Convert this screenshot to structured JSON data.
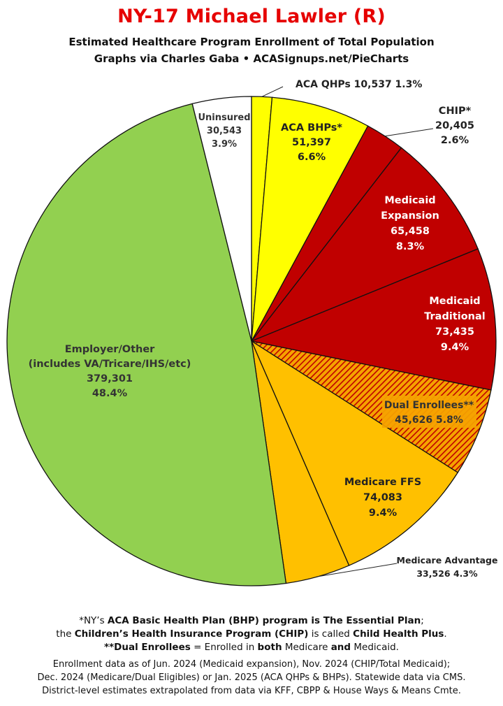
{
  "title": "NY-17 Michael Lawler (R)",
  "subtitle_line1": "Estimated Healthcare Program Enrollment of Total Population",
  "subtitle_line2": "Graphs via Charles Gaba  •  ACASignups.net/PieCharts",
  "chart_data": {
    "type": "pie",
    "title": "NY-17 Michael Lawler (R)",
    "start": "12 o'clock",
    "direction": "clockwise",
    "slices": [
      {
        "label": "ACA QHPs",
        "value": 10537,
        "value_text": "10,537",
        "percent_text": "1.3%",
        "color": "#ffff00",
        "pattern": "none"
      },
      {
        "label": "ACA BHPs*",
        "value": 51397,
        "value_text": "51,397",
        "percent_text": "6.6%",
        "color": "#ffff00",
        "pattern": "none"
      },
      {
        "label": "CHIP*",
        "value": 20405,
        "value_text": "20,405",
        "percent_text": "2.6%",
        "color": "#c00000",
        "pattern": "none"
      },
      {
        "label": "Medicaid Expansion",
        "value": 65458,
        "value_text": "65,458",
        "percent_text": "8.3%",
        "color": "#c00000",
        "pattern": "none"
      },
      {
        "label": "Medicaid Traditional",
        "value": 73435,
        "value_text": "73,435",
        "percent_text": "9.4%",
        "color": "#c00000",
        "pattern": "none"
      },
      {
        "label": "Dual Enrollees**",
        "value": 45626,
        "value_text": "45,626",
        "percent_text": "5.8%",
        "color": "#f5a300",
        "pattern": "hatch"
      },
      {
        "label": "Medicare FFS",
        "value": 74083,
        "value_text": "74,083",
        "percent_text": "9.4%",
        "color": "#ffc000",
        "pattern": "none"
      },
      {
        "label": "Medicare Advantage",
        "value": 33526,
        "value_text": "33,526",
        "percent_text": "4.3%",
        "color": "#ffc000",
        "pattern": "none"
      },
      {
        "label": "Employer/Other",
        "sublabel": "(includes VA/Tricare/IHS/etc)",
        "value": 379301,
        "value_text": "379,301",
        "percent_text": "48.4%",
        "color": "#92d050",
        "pattern": "none"
      },
      {
        "label": "Uninsured",
        "value": 30543,
        "value_text": "30,543",
        "percent_text": "3.9%",
        "color": "#ffffff",
        "pattern": "none"
      }
    ]
  },
  "footnotes": {
    "line1_pre": "*NY’s ",
    "line1_bold": "ACA Basic Health Plan (BHP) program is The Essential Plan",
    "line1_post": ";",
    "line2_pre": "the ",
    "line2_bold1": "Children’s Health Insurance Program (CHIP)",
    "line2_mid": " is called ",
    "line2_bold2": "Child Health Plus",
    "line2_post": ".",
    "line3_bold": "**Dual Enrollees",
    "line3_mid1": " = Enrolled in ",
    "line3_bold2": "both",
    "line3_mid2": " Medicare ",
    "line3_bold3": "and",
    "line3_post": " Medicaid."
  },
  "sources": {
    "line1": "Enrollment data as of Jun. 2024 (Medicaid expansion), Nov. 2024 (CHIP/Total Medicaid);",
    "line2": "Dec. 2024 (Medicare/Dual Eligibles) or Jan. 2025 (ACA QHPs & BHPs). Statewide data via CMS.",
    "line3": "District-level estimates extrapolated from data via KFF, CBPP & House Ways & Means Cmte."
  }
}
